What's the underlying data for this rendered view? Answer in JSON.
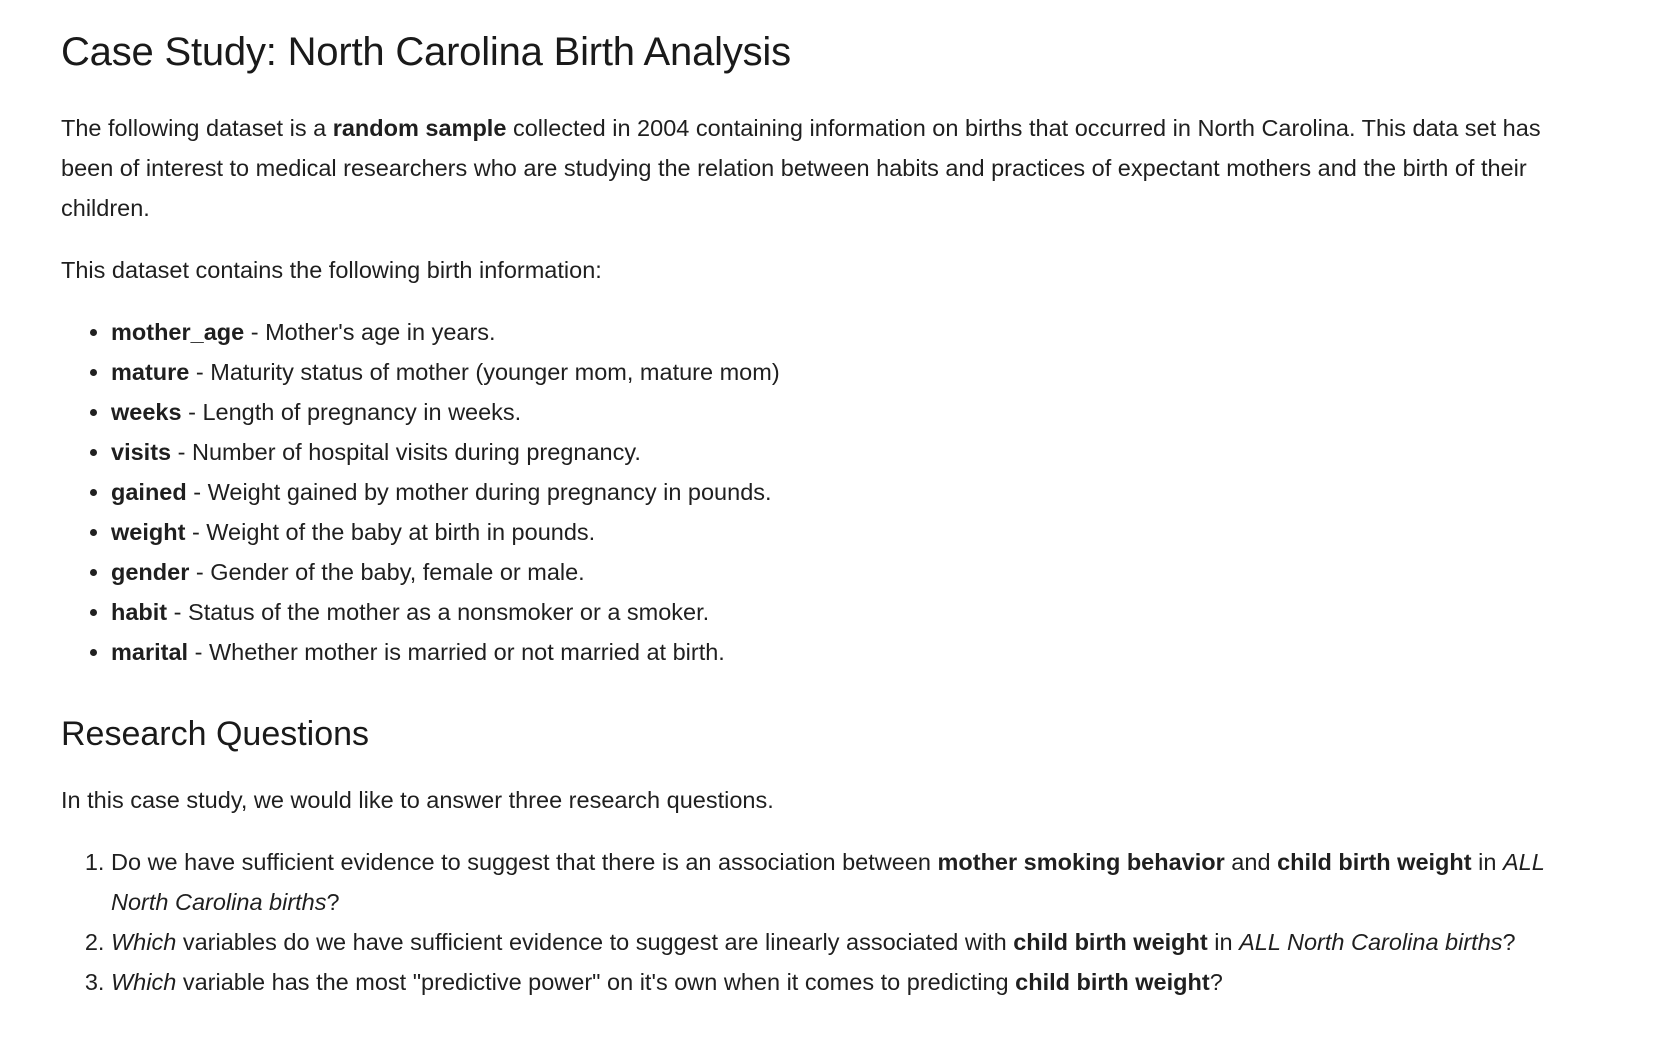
{
  "title": "Case Study: North Carolina Birth Analysis",
  "intro": {
    "t1": "The following dataset is a ",
    "bold": "random sample",
    "t2": " collected in 2004 containing information on births that occurred in North Carolina. This data set has been of interest to medical researchers who are studying the relation between habits and practices of expectant mothers and the birth of their children."
  },
  "contains_text": "This dataset contains the following birth information:",
  "variables": [
    {
      "name": "mother_age",
      "desc": " - Mother's age in years."
    },
    {
      "name": "mature",
      "desc": " - Maturity status of mother (younger mom, mature mom)"
    },
    {
      "name": "weeks",
      "desc": " - Length of pregnancy in weeks."
    },
    {
      "name": "visits",
      "desc": " - Number of hospital visits during pregnancy."
    },
    {
      "name": "gained",
      "desc": " - Weight gained by mother during pregnancy in pounds."
    },
    {
      "name": "weight",
      "desc": " - Weight of the baby at birth in pounds."
    },
    {
      "name": "gender",
      "desc": " - Gender of the baby, female or male."
    },
    {
      "name": "habit",
      "desc": " - Status of the mother as a nonsmoker or a smoker."
    },
    {
      "name": "marital",
      "desc": " - Whether mother is married or not married at birth."
    }
  ],
  "research_heading": "Research Questions",
  "research_intro": "In this case study, we would like to answer three research questions.",
  "questions": {
    "q1": {
      "t1": "Do we have sufficient evidence to suggest that there is an association between ",
      "b1": "mother smoking behavior",
      "t2": " and ",
      "b2": "child birth weight",
      "t3": " in ",
      "i1": "ALL North Carolina births",
      "t4": "?"
    },
    "q2": {
      "i1": "Which",
      "t1": " variables do we have sufficient evidence to suggest are linearly associated with ",
      "b1": "child birth weight",
      "t2": " in ",
      "i2": "ALL North Carolina births",
      "t3": "?"
    },
    "q3": {
      "i1": "Which",
      "t1": " variable has the most \"predictive power\" on it's own when it comes to predicting ",
      "b1": "child birth weight",
      "t2": "?"
    }
  }
}
